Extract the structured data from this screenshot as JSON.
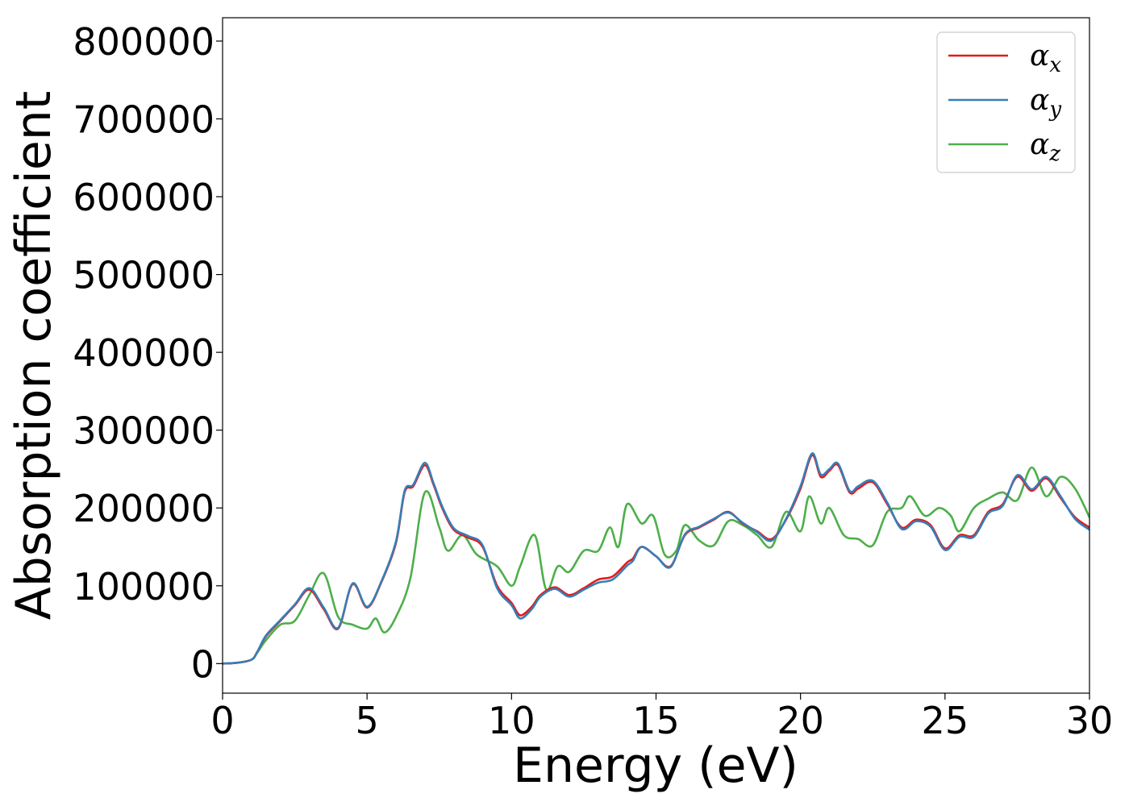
{
  "chart_data": {
    "type": "line",
    "xlabel": "Energy (eV)",
    "ylabel": "Absorption coefficient",
    "xlim": [
      0,
      30
    ],
    "ylim": [
      -38000,
      830000
    ],
    "xticks": [
      0,
      5,
      10,
      15,
      20,
      25,
      30
    ],
    "yticks": [
      0,
      100000,
      200000,
      300000,
      400000,
      500000,
      600000,
      700000,
      800000
    ],
    "grid": false,
    "legend_position": "top-right",
    "series": [
      {
        "name": "α",
        "subscript": "x",
        "color": "#e41a1c",
        "x": [
          0,
          0.5,
          1,
          1.2,
          1.5,
          2,
          2.5,
          3,
          3.5,
          4,
          4.5,
          5,
          5.5,
          6,
          6.3,
          6.6,
          7,
          7.3,
          7.6,
          8,
          8.5,
          9,
          9.5,
          10,
          10.3,
          10.7,
          11,
          11.5,
          12,
          12.5,
          13,
          13.5,
          14,
          14.2,
          14.5,
          15,
          15.5,
          16,
          16.5,
          17,
          17.5,
          18,
          18.5,
          19,
          19.5,
          20,
          20.4,
          20.7,
          21,
          21.3,
          21.7,
          22,
          22.5,
          23,
          23.5,
          24,
          24.5,
          25,
          25.5,
          26,
          26.5,
          27,
          27.5,
          28,
          28.5,
          29,
          29.5,
          30
        ],
        "y": [
          0,
          1000,
          5000,
          15000,
          35000,
          55000,
          75000,
          95000,
          70000,
          45000,
          102000,
          72000,
          105000,
          155000,
          220000,
          228000,
          255000,
          230000,
          200000,
          172000,
          162000,
          150000,
          100000,
          78000,
          62000,
          73000,
          88000,
          98000,
          88000,
          97000,
          108000,
          112000,
          130000,
          135000,
          150000,
          138000,
          125000,
          165000,
          175000,
          185000,
          195000,
          180000,
          170000,
          160000,
          185000,
          225000,
          268000,
          240000,
          248000,
          255000,
          220000,
          225000,
          233000,
          205000,
          175000,
          185000,
          178000,
          148000,
          165000,
          165000,
          195000,
          205000,
          240000,
          222000,
          238000,
          213000,
          188000,
          175000
        ]
      },
      {
        "name": "α",
        "subscript": "y",
        "color": "#377eb8",
        "x": [
          0,
          0.5,
          1,
          1.2,
          1.5,
          2,
          2.5,
          3,
          3.5,
          4,
          4.5,
          5,
          5.5,
          6,
          6.3,
          6.6,
          7,
          7.3,
          7.6,
          8,
          8.5,
          9,
          9.5,
          10,
          10.3,
          10.7,
          11,
          11.5,
          12,
          12.5,
          13,
          13.5,
          14,
          14.2,
          14.5,
          15,
          15.5,
          16,
          16.5,
          17,
          17.5,
          18,
          18.5,
          19,
          19.5,
          20,
          20.4,
          20.7,
          21,
          21.3,
          21.7,
          22,
          22.5,
          23,
          23.5,
          24,
          24.5,
          25,
          25.5,
          26,
          26.5,
          27,
          27.5,
          28,
          28.5,
          29,
          29.5,
          30
        ],
        "y": [
          0,
          1000,
          5000,
          15000,
          36000,
          56000,
          76000,
          97000,
          72000,
          46000,
          103000,
          73000,
          106000,
          157000,
          222000,
          230000,
          258000,
          232000,
          202000,
          174000,
          164000,
          152000,
          97000,
          75000,
          58000,
          70000,
          86000,
          96000,
          86000,
          95000,
          104000,
          108000,
          126000,
          132000,
          150000,
          138000,
          124000,
          166000,
          176000,
          186000,
          194000,
          181000,
          169000,
          158000,
          186000,
          228000,
          270000,
          243000,
          250000,
          257000,
          222000,
          228000,
          235000,
          207000,
          173000,
          183000,
          176000,
          146000,
          163000,
          163000,
          193000,
          203000,
          242000,
          224000,
          240000,
          215000,
          186000,
          172000
        ]
      },
      {
        "name": "α",
        "subscript": "z",
        "color": "#4daf4a",
        "x": [
          0,
          0.5,
          1,
          1.2,
          1.5,
          2,
          2.5,
          3,
          3.5,
          4,
          4.5,
          5,
          5.3,
          5.6,
          6,
          6.5,
          7,
          7.5,
          7.8,
          8.3,
          8.8,
          9.5,
          10,
          10.3,
          10.8,
          11.2,
          11.6,
          12,
          12.5,
          13,
          13.4,
          13.7,
          14,
          14.5,
          14.9,
          15.3,
          15.7,
          16,
          16.5,
          17,
          17.5,
          18,
          18.5,
          19,
          19.5,
          20,
          20.3,
          20.7,
          21,
          21.5,
          22,
          22.5,
          23,
          23.5,
          23.8,
          24.3,
          24.8,
          25.2,
          25.5,
          26,
          26.5,
          27,
          27.5,
          28,
          28.5,
          29,
          29.5,
          30
        ],
        "y": [
          0,
          1000,
          5000,
          14000,
          30000,
          50000,
          55000,
          88000,
          116000,
          60000,
          50000,
          45000,
          58000,
          40000,
          60000,
          110000,
          220000,
          175000,
          145000,
          165000,
          140000,
          125000,
          100000,
          125000,
          165000,
          95000,
          125000,
          118000,
          145000,
          145000,
          175000,
          150000,
          205000,
          180000,
          190000,
          140000,
          145000,
          178000,
          158000,
          152000,
          183000,
          178000,
          165000,
          150000,
          195000,
          170000,
          215000,
          180000,
          200000,
          165000,
          160000,
          152000,
          195000,
          200000,
          215000,
          190000,
          200000,
          190000,
          170000,
          200000,
          212000,
          220000,
          210000,
          252000,
          215000,
          240000,
          225000,
          188000
        ]
      }
    ]
  }
}
